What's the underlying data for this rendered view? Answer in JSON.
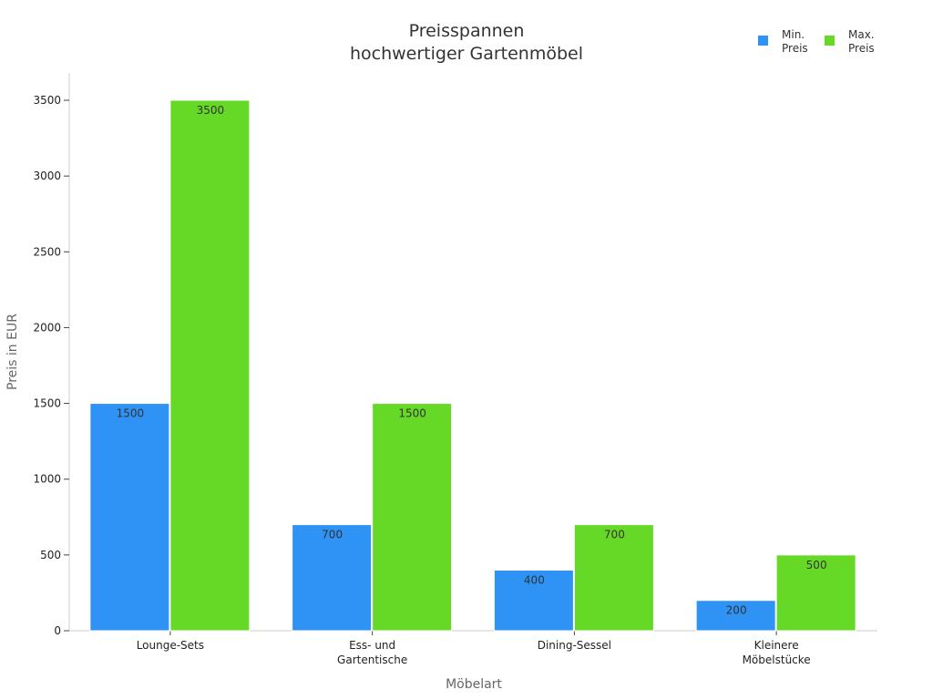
{
  "chart_data": {
    "type": "bar",
    "title": [
      "Preisspannen",
      "hochwertiger Gartenmöbel"
    ],
    "xlabel": "Möbelart",
    "ylabel": "Preis in EUR",
    "categories": [
      [
        "Lounge-Sets"
      ],
      [
        "Ess- und",
        "Gartentische"
      ],
      [
        "Dining-Sessel"
      ],
      [
        "Kleinere",
        "Möbelstücke"
      ]
    ],
    "series": [
      {
        "name": [
          "Min.",
          "Preis"
        ],
        "color": "#2f92f5",
        "values": [
          1500,
          700,
          400,
          200
        ]
      },
      {
        "name": [
          "Max.",
          "Preis"
        ],
        "color": "#66d926",
        "values": [
          3500,
          1500,
          700,
          500
        ]
      }
    ],
    "ylim": [
      0,
      3500
    ],
    "yticks": [
      0,
      500,
      1000,
      1500,
      2000,
      2500,
      3000,
      3500
    ],
    "grid": false,
    "legend_position": "top-right"
  }
}
